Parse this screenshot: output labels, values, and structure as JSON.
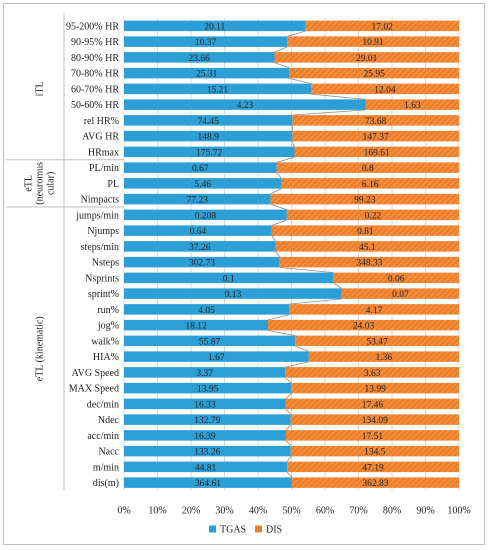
{
  "chart_data": {
    "type": "bar",
    "orientation": "horizontal",
    "stacking": "100% stacked",
    "categories": [
      "95-200% HR",
      "90-95% HR",
      "80-90% HR",
      "70-80% HR",
      "60-70% HR",
      "50-60% HR",
      "rel HR%",
      "AVG HR",
      "HRmax",
      "PL/min",
      "PL",
      "Nimpacts",
      "jumps/min",
      "Njumps",
      "steps/min",
      "Nsteps",
      "Nsprints",
      "sprint%",
      "run%",
      "jog%",
      "walk%",
      "HIA%",
      "AVG Speed",
      "MAX Speed",
      "dec/min",
      "Ndec",
      "acc/min",
      "Nacc",
      "m/min",
      "dis(m)"
    ],
    "series": [
      {
        "name": "TGAS",
        "color": "#2b9fd6",
        "values": [
          "20.11",
          "10.37",
          "23.66",
          "25.31",
          "15.21",
          "4.23",
          "74.45",
          "148.9",
          "175.72",
          "0.67",
          "5.46",
          "77.23",
          "0.208",
          "0.64",
          "37.26",
          "302.73",
          "0.1",
          "0.13",
          "4.05",
          "18.12",
          "55.87",
          "1.67",
          "3.37",
          "13.95",
          "16.33",
          "132.79",
          "16.39",
          "133.26",
          "44.81",
          "364.61"
        ]
      },
      {
        "name": "DIS",
        "color": "#f07f2a",
        "values": [
          "17.02",
          "10.91",
          "29.01",
          "25.95",
          "12.04",
          "1.63",
          "73.68",
          "147.37",
          "169.61",
          "0.8",
          "6.16",
          "99.23",
          "0.22",
          "0.81",
          "45.1",
          "348.33",
          "0.06",
          "0.07",
          "4.17",
          "24.03",
          "53.47",
          "1.36",
          "3.63",
          "13.99",
          "17.46",
          "134.09",
          "17.51",
          "134.5",
          "47.19",
          "362.83"
        ]
      }
    ],
    "groups": [
      {
        "label": "iTL",
        "from": 0,
        "to": 8
      },
      {
        "label": "eTL (neuromus cular)",
        "lines": [
          "eTL",
          "(neuromus",
          "cular)"
        ],
        "from": 9,
        "to": 11
      },
      {
        "label": "eTL (kinematic)",
        "from": 12,
        "to": 29
      }
    ],
    "x_ticks": [
      "0%",
      "10%",
      "20%",
      "30%",
      "40%",
      "50%",
      "60%",
      "70%",
      "80%",
      "90%",
      "100%"
    ],
    "xlim": [
      0,
      100
    ],
    "legend_position": "bottom",
    "grid": true,
    "title": "",
    "xlabel": "",
    "ylabel": ""
  }
}
